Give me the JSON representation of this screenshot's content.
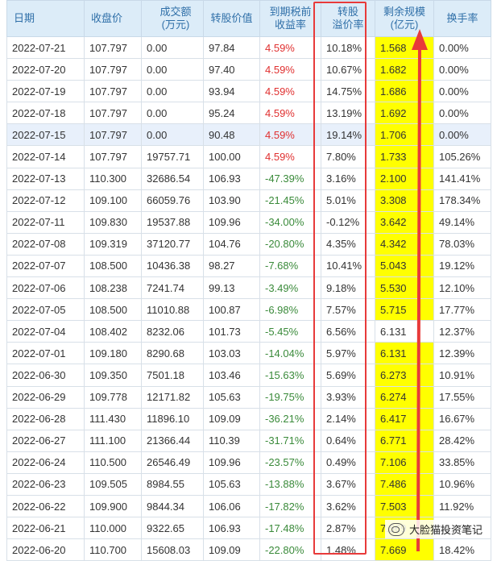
{
  "headers": [
    "日期",
    "收盘价",
    "成交额\n(万元)",
    "转股价值",
    "到期税前\n收益率",
    "转股\n溢价率",
    "剩余规模\n(亿元)",
    "换手率"
  ],
  "rows": [
    {
      "date": "2022-07-21",
      "close": "107.797",
      "turnover_amt": "0.00",
      "conv_value": "97.84",
      "ytm": "4.59%",
      "premium": "10.18%",
      "remain": "1.568",
      "turnover": "0.00%"
    },
    {
      "date": "2022-07-20",
      "close": "107.797",
      "turnover_amt": "0.00",
      "conv_value": "97.40",
      "ytm": "4.59%",
      "premium": "10.67%",
      "remain": "1.682",
      "turnover": "0.00%"
    },
    {
      "date": "2022-07-19",
      "close": "107.797",
      "turnover_amt": "0.00",
      "conv_value": "93.94",
      "ytm": "4.59%",
      "premium": "14.75%",
      "remain": "1.686",
      "turnover": "0.00%"
    },
    {
      "date": "2022-07-18",
      "close": "107.797",
      "turnover_amt": "0.00",
      "conv_value": "95.24",
      "ytm": "4.59%",
      "premium": "13.19%",
      "remain": "1.692",
      "turnover": "0.00%"
    },
    {
      "date": "2022-07-15",
      "close": "107.797",
      "turnover_amt": "0.00",
      "conv_value": "90.48",
      "ytm": "4.59%",
      "premium": "19.14%",
      "remain": "1.706",
      "turnover": "0.00%"
    },
    {
      "date": "2022-07-14",
      "close": "107.797",
      "turnover_amt": "19757.71",
      "conv_value": "100.00",
      "ytm": "4.59%",
      "premium": "7.80%",
      "remain": "1.733",
      "turnover": "105.26%"
    },
    {
      "date": "2022-07-13",
      "close": "110.300",
      "turnover_amt": "32686.54",
      "conv_value": "106.93",
      "ytm": "-47.39%",
      "premium": "3.16%",
      "remain": "2.100",
      "turnover": "141.41%"
    },
    {
      "date": "2022-07-12",
      "close": "109.100",
      "turnover_amt": "66059.76",
      "conv_value": "103.90",
      "ytm": "-21.45%",
      "premium": "5.01%",
      "remain": "3.308",
      "turnover": "178.34%"
    },
    {
      "date": "2022-07-11",
      "close": "109.830",
      "turnover_amt": "19537.88",
      "conv_value": "109.96",
      "ytm": "-34.00%",
      "premium": "-0.12%",
      "remain": "3.642",
      "turnover": "49.14%"
    },
    {
      "date": "2022-07-08",
      "close": "109.319",
      "turnover_amt": "37120.77",
      "conv_value": "104.76",
      "ytm": "-20.80%",
      "premium": "4.35%",
      "remain": "4.342",
      "turnover": "78.03%"
    },
    {
      "date": "2022-07-07",
      "close": "108.500",
      "turnover_amt": "10436.38",
      "conv_value": "98.27",
      "ytm": "-7.68%",
      "premium": "10.41%",
      "remain": "5.043",
      "turnover": "19.12%"
    },
    {
      "date": "2022-07-06",
      "close": "108.238",
      "turnover_amt": "7241.74",
      "conv_value": "99.13",
      "ytm": "-3.49%",
      "premium": "9.18%",
      "remain": "5.530",
      "turnover": "12.10%"
    },
    {
      "date": "2022-07-05",
      "close": "108.500",
      "turnover_amt": "11010.88",
      "conv_value": "100.87",
      "ytm": "-6.98%",
      "premium": "7.57%",
      "remain": "5.715",
      "turnover": "17.77%"
    },
    {
      "date": "2022-07-04",
      "close": "108.402",
      "turnover_amt": "8232.06",
      "conv_value": "101.73",
      "ytm": "-5.45%",
      "premium": "6.56%",
      "remain": "6.131",
      "turnover": "12.37%"
    },
    {
      "date": "2022-07-01",
      "close": "109.180",
      "turnover_amt": "8290.68",
      "conv_value": "103.03",
      "ytm": "-14.04%",
      "premium": "5.97%",
      "remain": "6.131",
      "turnover": "12.39%"
    },
    {
      "date": "2022-06-30",
      "close": "109.350",
      "turnover_amt": "7501.18",
      "conv_value": "103.46",
      "ytm": "-15.63%",
      "premium": "5.69%",
      "remain": "6.273",
      "turnover": "10.91%"
    },
    {
      "date": "2022-06-29",
      "close": "109.778",
      "turnover_amt": "12171.82",
      "conv_value": "105.63",
      "ytm": "-19.75%",
      "premium": "3.93%",
      "remain": "6.274",
      "turnover": "17.55%"
    },
    {
      "date": "2022-06-28",
      "close": "111.430",
      "turnover_amt": "11896.10",
      "conv_value": "109.09",
      "ytm": "-36.21%",
      "premium": "2.14%",
      "remain": "6.417",
      "turnover": "16.67%"
    },
    {
      "date": "2022-06-27",
      "close": "111.100",
      "turnover_amt": "21366.44",
      "conv_value": "110.39",
      "ytm": "-31.71%",
      "premium": "0.64%",
      "remain": "6.771",
      "turnover": "28.42%"
    },
    {
      "date": "2022-06-24",
      "close": "110.500",
      "turnover_amt": "26546.49",
      "conv_value": "109.96",
      "ytm": "-23.57%",
      "premium": "0.49%",
      "remain": "7.106",
      "turnover": "33.85%"
    },
    {
      "date": "2022-06-23",
      "close": "109.505",
      "turnover_amt": "8984.55",
      "conv_value": "105.63",
      "ytm": "-13.88%",
      "premium": "3.67%",
      "remain": "7.486",
      "turnover": "10.96%"
    },
    {
      "date": "2022-06-22",
      "close": "109.900",
      "turnover_amt": "9844.34",
      "conv_value": "106.06",
      "ytm": "-17.82%",
      "premium": "3.62%",
      "remain": "7.503",
      "turnover": "11.92%"
    },
    {
      "date": "2022-06-21",
      "close": "110.000",
      "turnover_amt": "9322.65",
      "conv_value": "106.93",
      "ytm": "-17.48%",
      "premium": "2.87%",
      "remain": "7.569",
      "turnover": "11.15%"
    },
    {
      "date": "2022-06-20",
      "close": "110.700",
      "turnover_amt": "15608.03",
      "conv_value": "109.09",
      "ytm": "-22.80%",
      "premium": "1.48%",
      "remain": "7.669",
      "turnover": "18.42%"
    }
  ],
  "watermark": "大脸猫投资笔记",
  "colors": {
    "ytm_positive": "#e03030",
    "ytm_negative": "#3a8a3a",
    "highlight_yellow": "#ffff00",
    "annotation_red": "#e83a3a",
    "header_bg": "#dcecf8"
  },
  "highlighted_row_index": 4,
  "unhighlighted_remain_row_index": 13
}
